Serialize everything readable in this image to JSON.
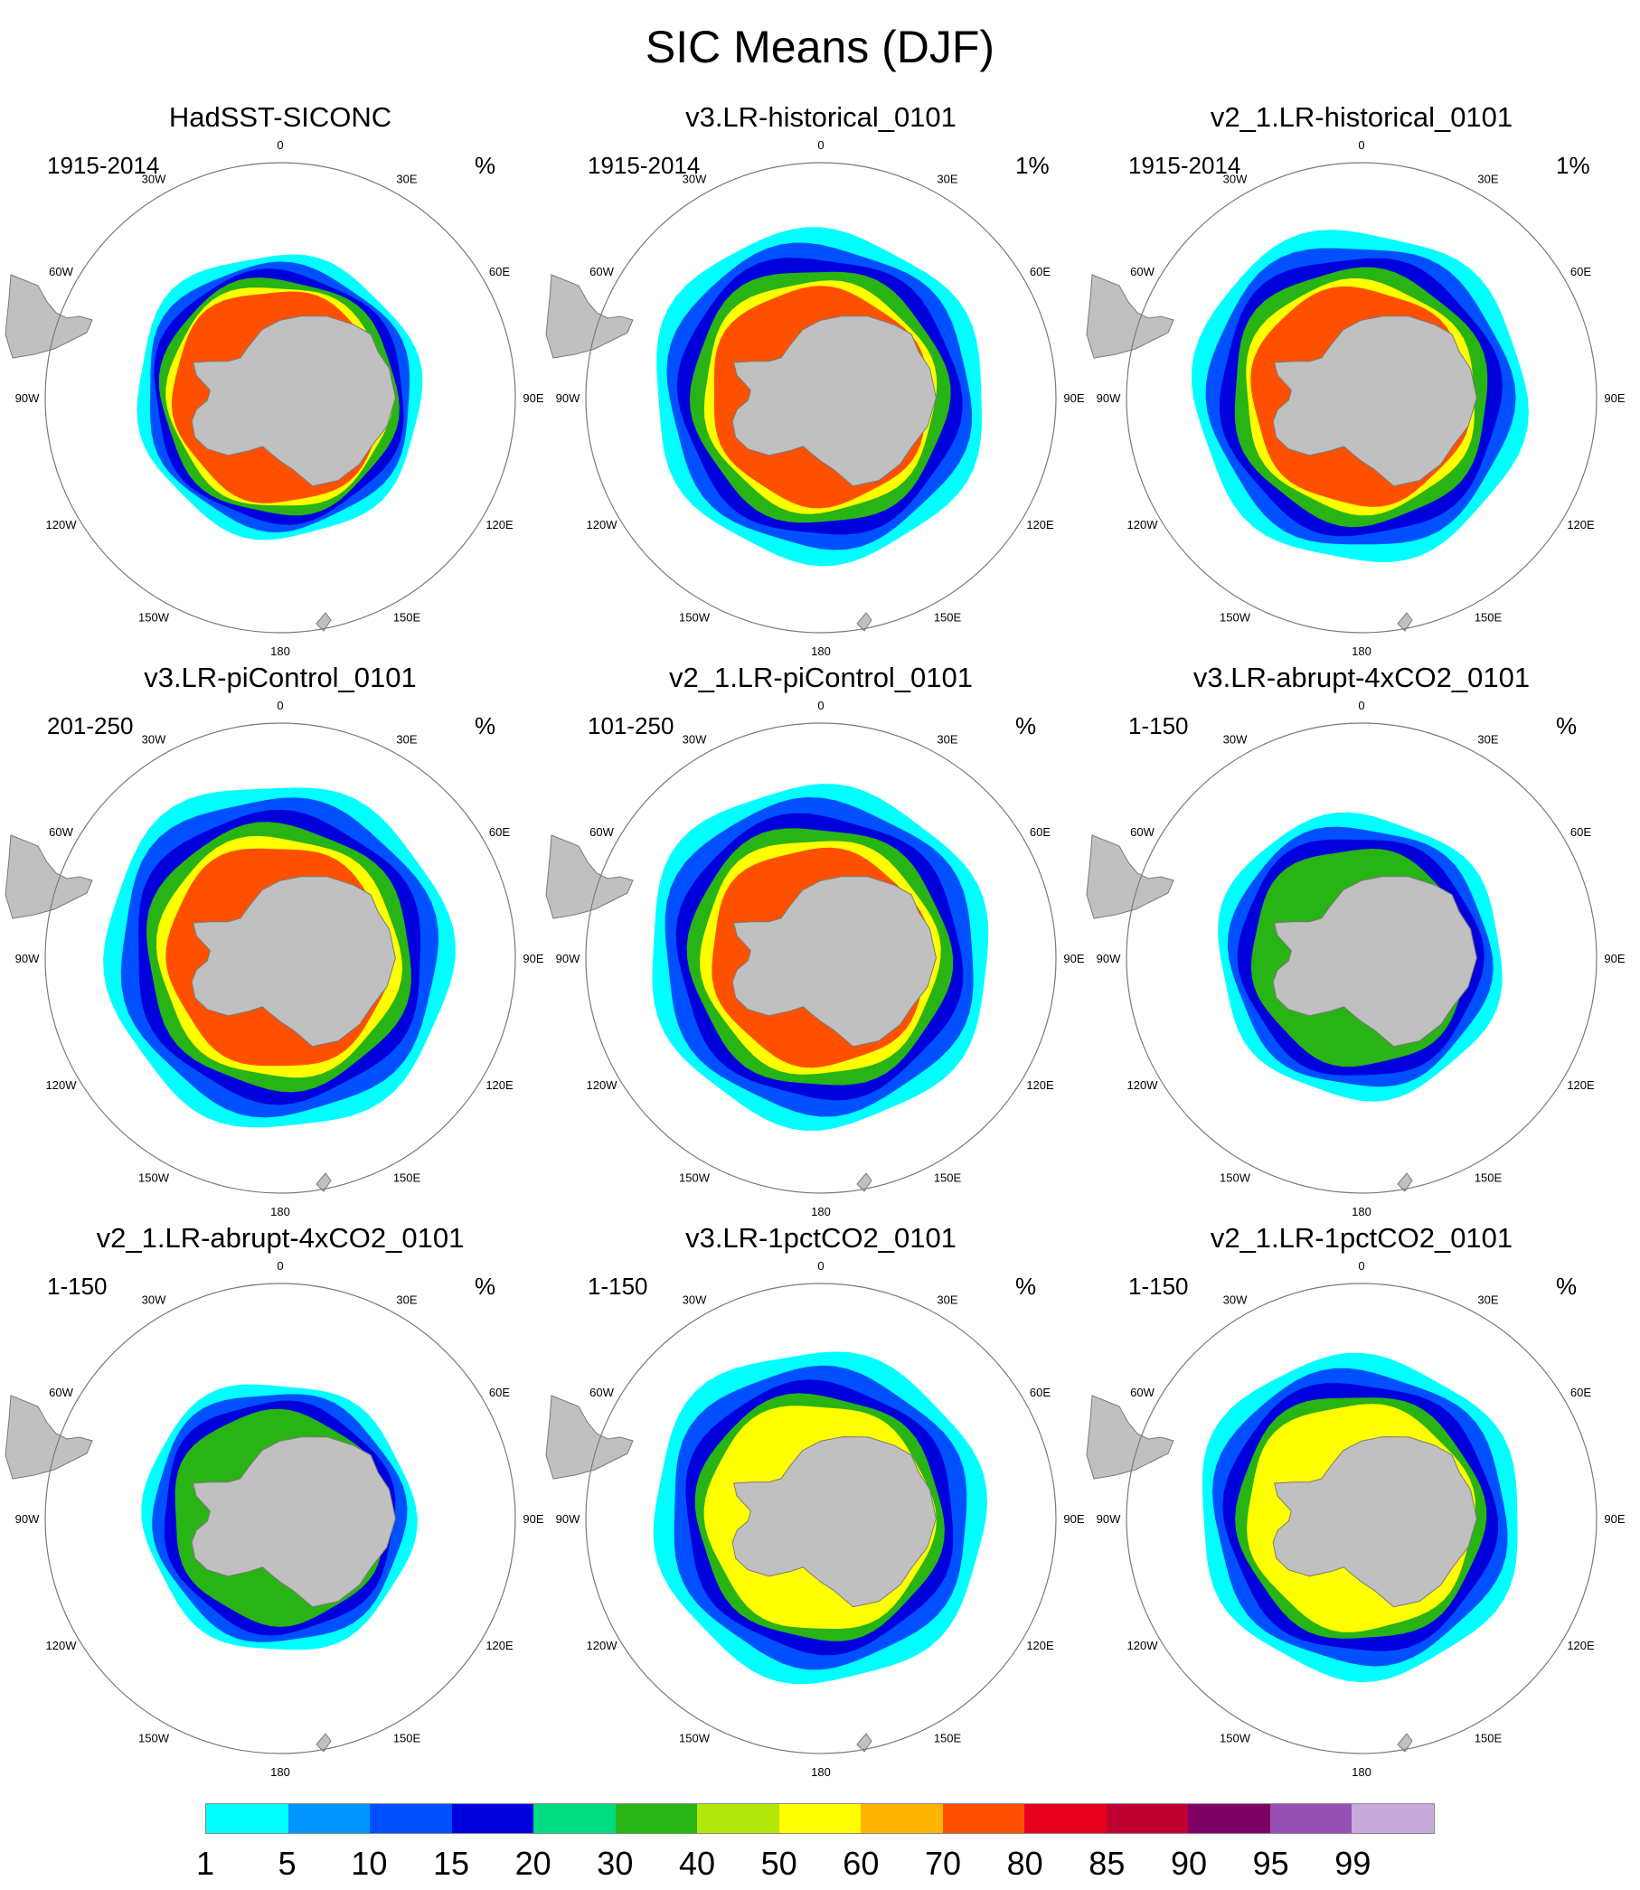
{
  "title": "SIC Means (DJF)",
  "colors": {
    "land": "#c0c0c0",
    "ocean": "#ffffff",
    "outline": "#7a7a7a"
  },
  "longitude_labels": [
    "0",
    "30E",
    "60E",
    "90E",
    "120E",
    "150E",
    "180",
    "150W",
    "120W",
    "90W",
    "60W",
    "30W"
  ],
  "colorbar": {
    "labels": [
      "1",
      "5",
      "10",
      "15",
      "20",
      "30",
      "40",
      "50",
      "60",
      "70",
      "80",
      "85",
      "90",
      "95",
      "99"
    ],
    "colors": [
      "#00ffff",
      "#0096ff",
      "#0050ff",
      "#0000dc",
      "#00dc82",
      "#28b414",
      "#b4e60a",
      "#ffff00",
      "#ffb400",
      "#ff5000",
      "#e6001e",
      "#be0032",
      "#7d0064",
      "#9650b4",
      "#c8aadc"
    ]
  },
  "panels": [
    {
      "title": "HadSST-SICONC",
      "years": "1915-2014",
      "units": "%",
      "levels": [
        {
          "lev": 0,
          "r": 0.6
        },
        {
          "lev": 2,
          "r": 0.56
        },
        {
          "lev": 3,
          "r": 0.53
        },
        {
          "lev": 5,
          "r": 0.5
        },
        {
          "lev": 7,
          "r": 0.47
        },
        {
          "lev": 9,
          "r": 0.45
        }
      ]
    },
    {
      "title": "v3.LR-historical_0101",
      "years": "1915-2014",
      "units": "1%",
      "levels": [
        {
          "lev": 0,
          "r": 0.7
        },
        {
          "lev": 2,
          "r": 0.64
        },
        {
          "lev": 3,
          "r": 0.59
        },
        {
          "lev": 5,
          "r": 0.54
        },
        {
          "lev": 7,
          "r": 0.49
        },
        {
          "lev": 9,
          "r": 0.46
        }
      ]
    },
    {
      "title": "v2_1.LR-historical_0101",
      "years": "1915-2014",
      "units": "1%",
      "levels": [
        {
          "lev": 0,
          "r": 0.7
        },
        {
          "lev": 2,
          "r": 0.64
        },
        {
          "lev": 3,
          "r": 0.59
        },
        {
          "lev": 5,
          "r": 0.54
        },
        {
          "lev": 7,
          "r": 0.49
        },
        {
          "lev": 9,
          "r": 0.46
        }
      ]
    },
    {
      "title": "v3.LR-piControl_0101",
      "years": "201-250",
      "units": "%",
      "levels": [
        {
          "lev": 0,
          "r": 0.73
        },
        {
          "lev": 2,
          "r": 0.67
        },
        {
          "lev": 3,
          "r": 0.61
        },
        {
          "lev": 5,
          "r": 0.56
        },
        {
          "lev": 7,
          "r": 0.51
        },
        {
          "lev": 9,
          "r": 0.47
        }
      ]
    },
    {
      "title": "v2_1.LR-piControl_0101",
      "years": "101-250",
      "units": "%",
      "levels": [
        {
          "lev": 0,
          "r": 0.72
        },
        {
          "lev": 2,
          "r": 0.66
        },
        {
          "lev": 3,
          "r": 0.6
        },
        {
          "lev": 5,
          "r": 0.55
        },
        {
          "lev": 7,
          "r": 0.5
        },
        {
          "lev": 9,
          "r": 0.46
        }
      ]
    },
    {
      "title": "v3.LR-abrupt-4xCO2_0101",
      "years": "1-150",
      "units": "%",
      "levels": [
        {
          "lev": 0,
          "r": 0.6
        },
        {
          "lev": 2,
          "r": 0.55
        },
        {
          "lev": 3,
          "r": 0.51
        },
        {
          "lev": 5,
          "r": 0.46
        }
      ]
    },
    {
      "title": "v2_1.LR-abrupt-4xCO2_0101",
      "years": "1-150",
      "units": "%",
      "levels": [
        {
          "lev": 0,
          "r": 0.57
        },
        {
          "lev": 2,
          "r": 0.53
        },
        {
          "lev": 3,
          "r": 0.49
        },
        {
          "lev": 5,
          "r": 0.45
        }
      ]
    },
    {
      "title": "v3.LR-1pctCO2_0101",
      "years": "1-150",
      "units": "%",
      "levels": [
        {
          "lev": 0,
          "r": 0.7
        },
        {
          "lev": 2,
          "r": 0.63
        },
        {
          "lev": 3,
          "r": 0.57
        },
        {
          "lev": 5,
          "r": 0.52
        },
        {
          "lev": 7,
          "r": 0.48
        }
      ]
    },
    {
      "title": "v2_1.LR-1pctCO2_0101",
      "years": "1-150",
      "units": "%",
      "levels": [
        {
          "lev": 0,
          "r": 0.68
        },
        {
          "lev": 2,
          "r": 0.62
        },
        {
          "lev": 3,
          "r": 0.57
        },
        {
          "lev": 5,
          "r": 0.52
        },
        {
          "lev": 7,
          "r": 0.48
        }
      ]
    }
  ]
}
